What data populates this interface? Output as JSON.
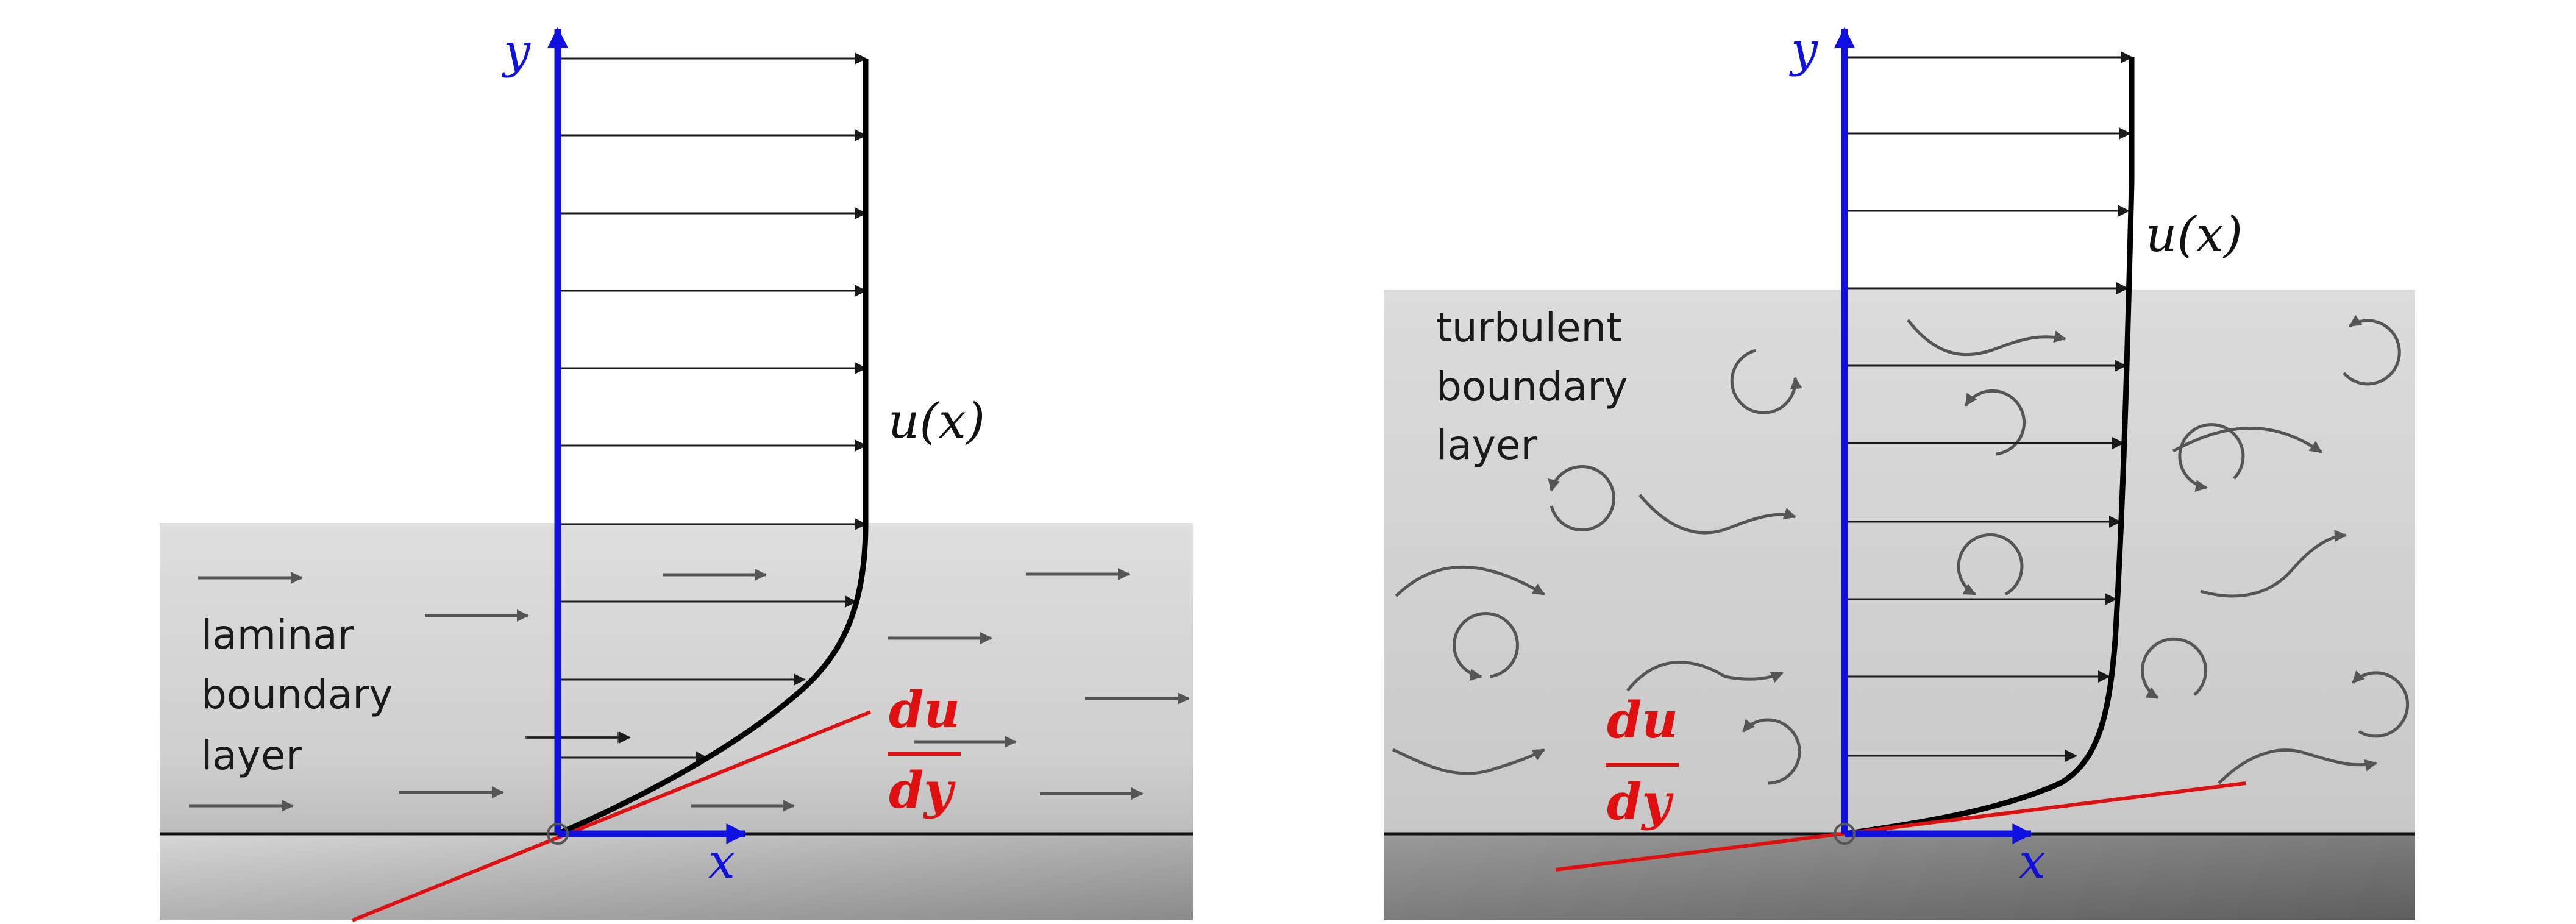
{
  "colors": {
    "axis": "#1010e0",
    "derivative": "#e01010",
    "profile": "#000000",
    "flow_arrow": "#555555",
    "vector_arrow": "#1a1a1a"
  },
  "panels": [
    {
      "id": "laminar",
      "layer_label": [
        "laminar",
        "boundary",
        "layer"
      ],
      "profile_label": "u(x)",
      "derivative_num": "du",
      "derivative_den": "dy",
      "y_axis_label": "y",
      "x_axis_label": "x"
    },
    {
      "id": "turbulent",
      "layer_label": [
        "turbulent",
        "boundary",
        "layer"
      ],
      "profile_label": "u(x)",
      "derivative_num": "du",
      "derivative_den": "dy",
      "y_axis_label": "y",
      "x_axis_label": "x"
    }
  ]
}
